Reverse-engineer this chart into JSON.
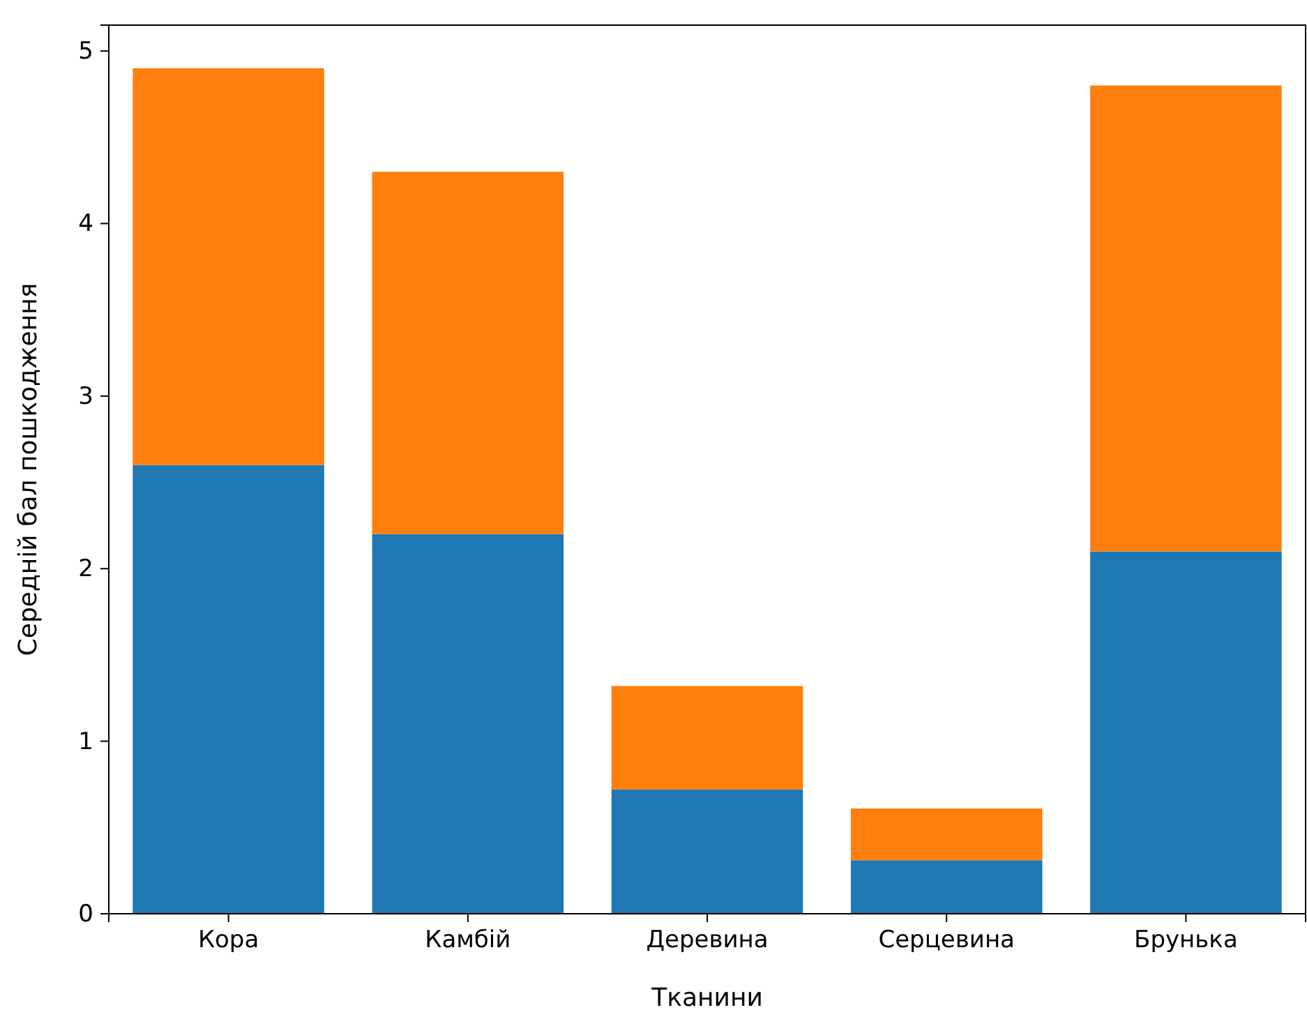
{
  "chart_data": {
    "type": "bar",
    "stacked": true,
    "xlabel": "Тканини",
    "ylabel": "Середній бал пошкодження",
    "categories": [
      "Кора",
      "Камбій",
      "Деревина",
      "Серцевина",
      "Брунька"
    ],
    "series": [
      {
        "color": "#1f77b4",
        "values": [
          2.6,
          2.2,
          0.72,
          0.31,
          2.1
        ]
      },
      {
        "color": "#ff7f0e",
        "values": [
          2.3,
          2.1,
          0.6,
          0.3,
          2.7
        ]
      }
    ],
    "ylim": [
      0,
      5.15
    ],
    "yticks": [
      0,
      1,
      2,
      3,
      4,
      5
    ],
    "grid": false
  }
}
